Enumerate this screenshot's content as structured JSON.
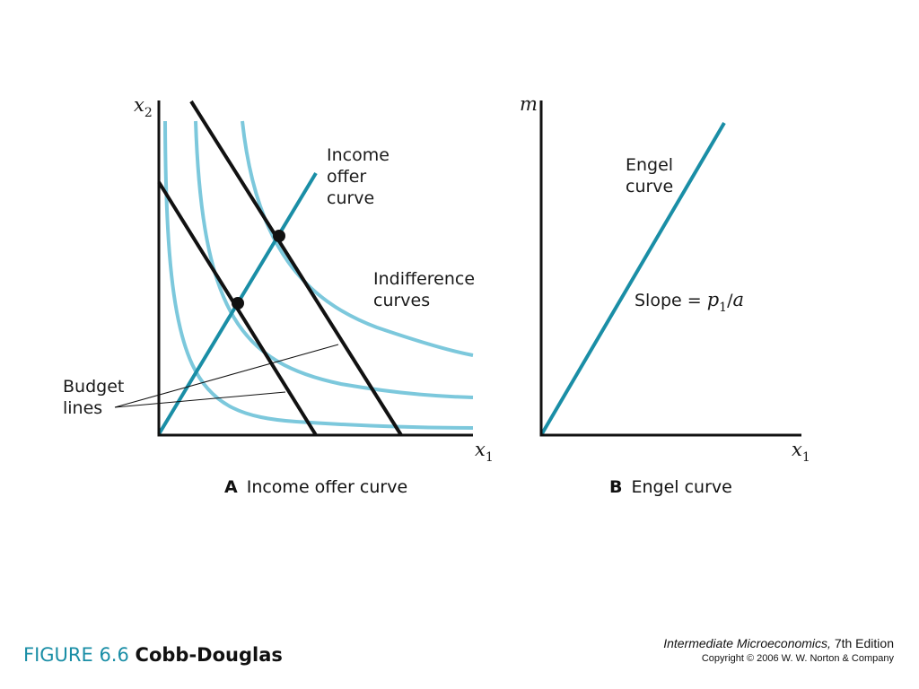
{
  "colors": {
    "teal": "#1a8ea6",
    "light_teal": "#7cc8dc",
    "black": "#111111"
  },
  "panel_a": {
    "y_axis_var": "x",
    "y_axis_sub": "2",
    "x_axis_var": "x",
    "x_axis_sub": "1",
    "income_offer_label": [
      "Income",
      "offer",
      "curve"
    ],
    "indifference_label": [
      "Indifference",
      "curves"
    ],
    "budget_label": [
      "Budget",
      "lines"
    ],
    "caption_letter": "A",
    "caption_text": "Income offer curve"
  },
  "panel_b": {
    "y_axis_var": "m",
    "x_axis_var": "x",
    "x_axis_sub": "1",
    "engel_label": [
      "Engel",
      "curve"
    ],
    "slope_prefix": "Slope = ",
    "slope_p": "p",
    "slope_p_sub": "1",
    "slope_sep": "/",
    "slope_a": "a",
    "caption_letter": "B",
    "caption_text": "Engel curve"
  },
  "figure": {
    "number": "FIGURE 6.6",
    "title": "Cobb-Douglas"
  },
  "credit": {
    "book": "Intermediate Microeconomics,",
    "edition": " 7th Edition",
    "copyright": "Copyright © 2006 W. W. Norton & Company"
  }
}
